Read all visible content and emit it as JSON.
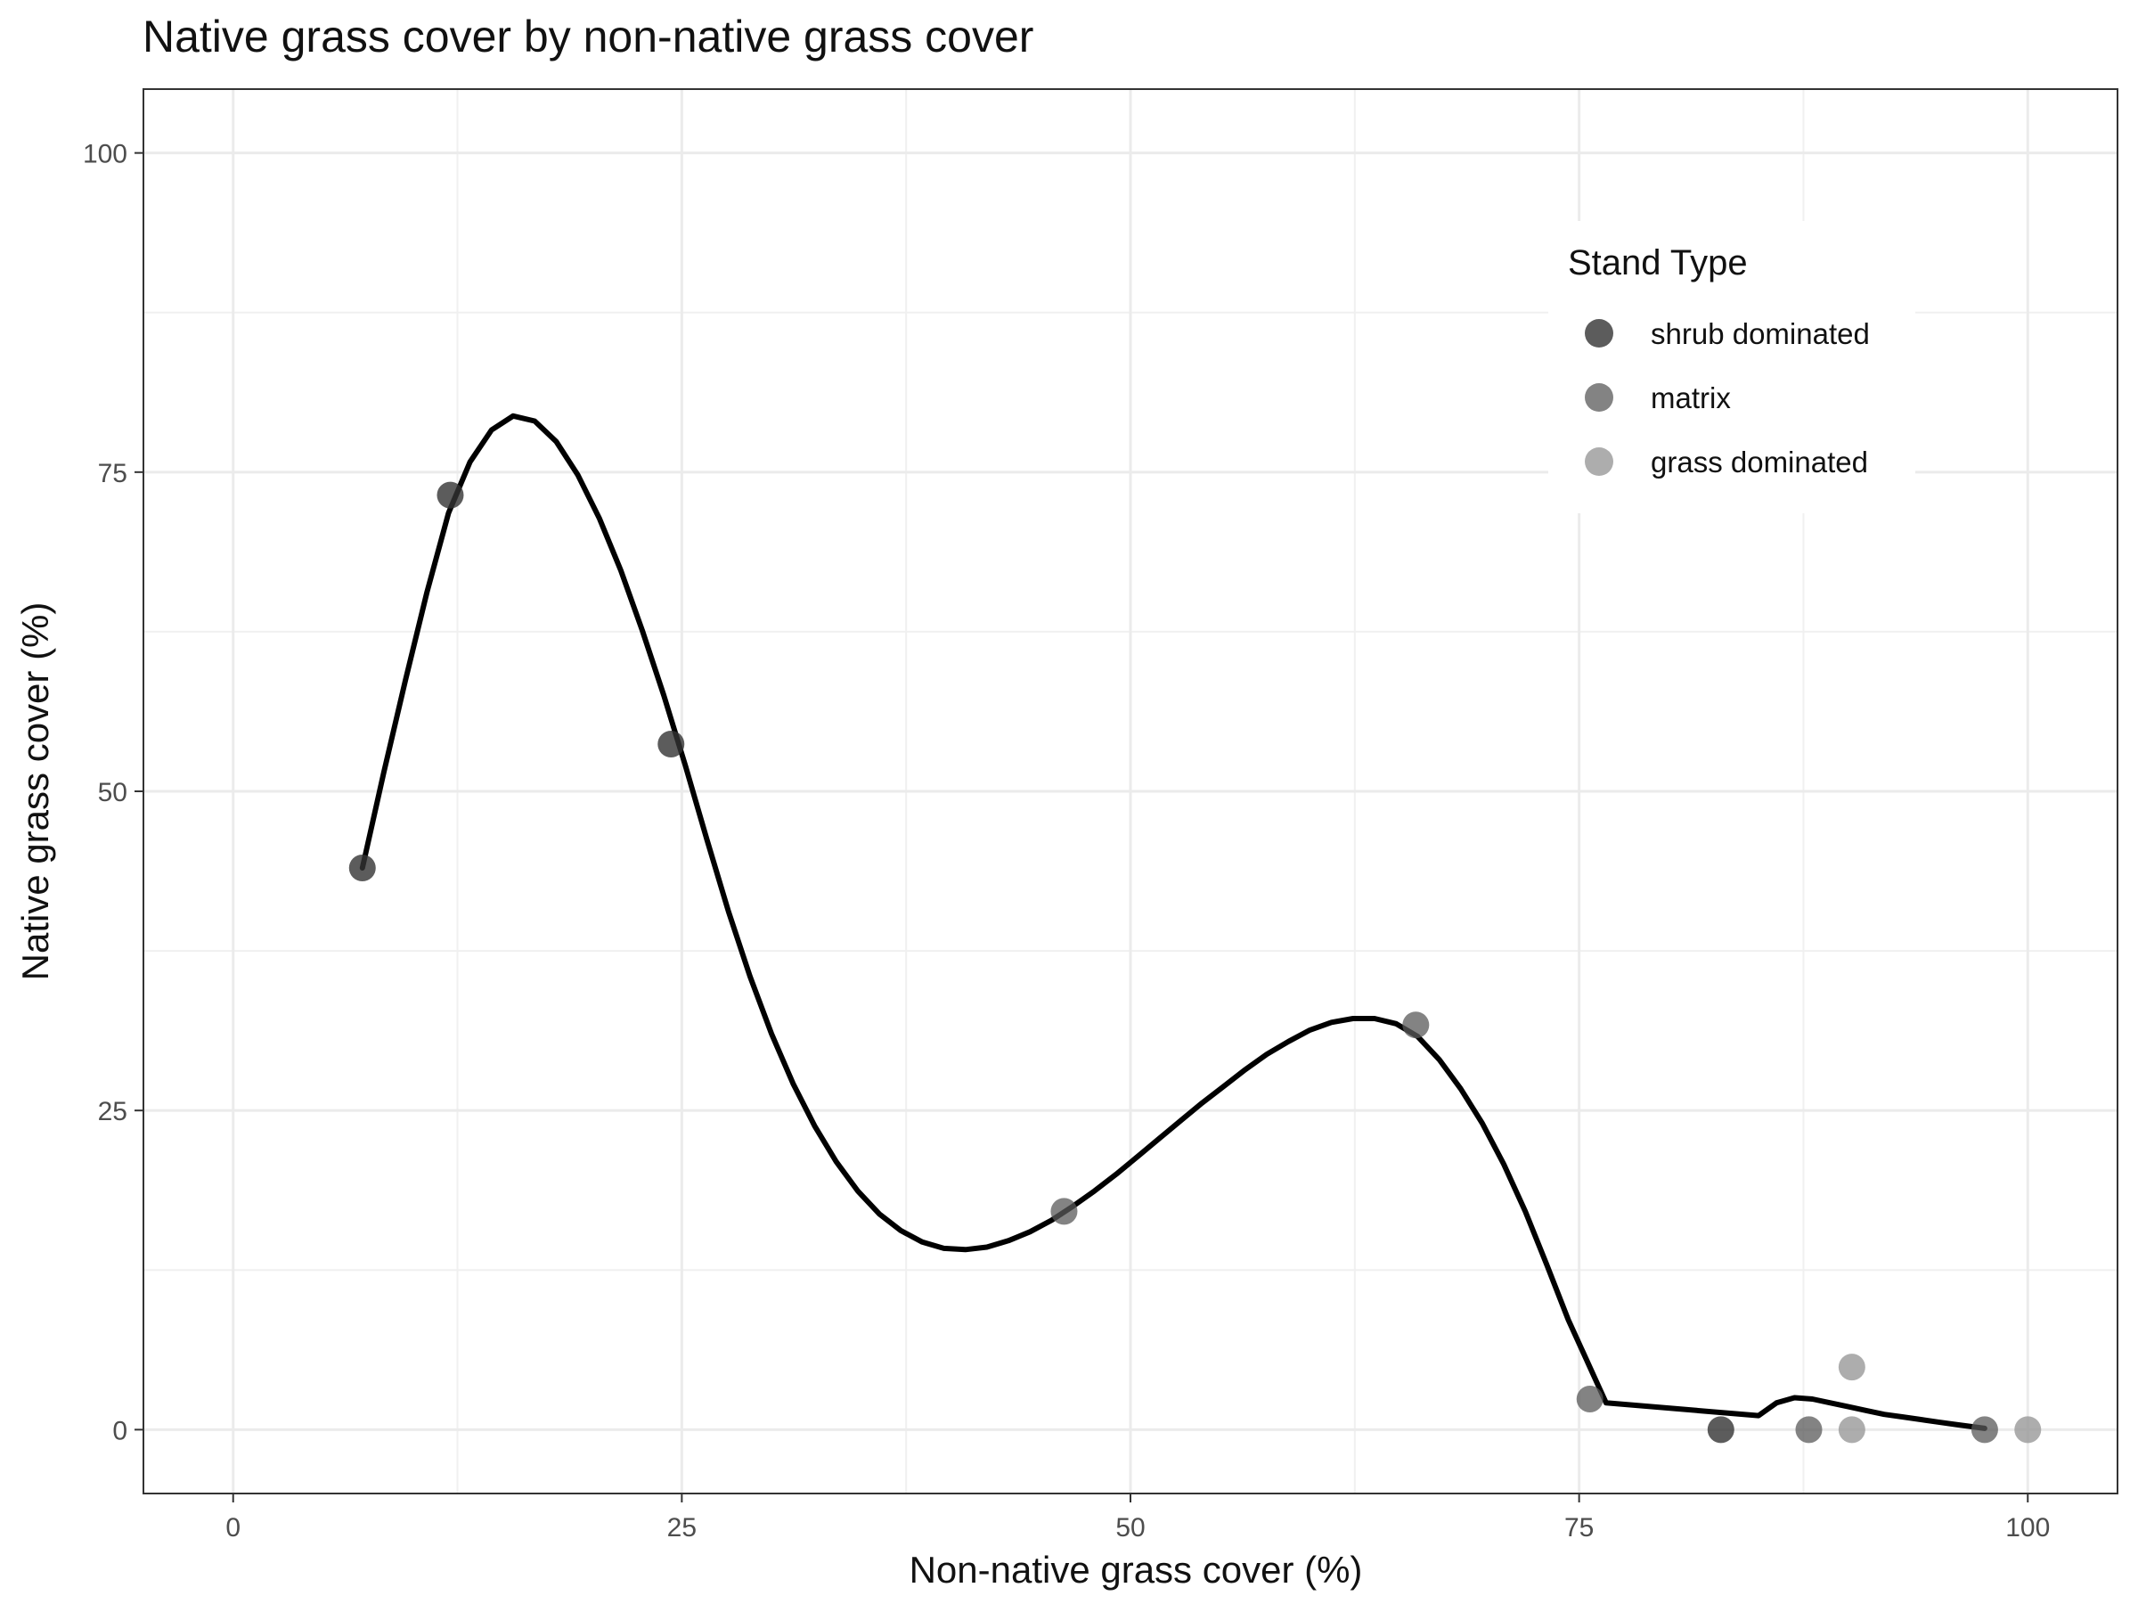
{
  "chart_data": {
    "type": "scatter",
    "title": "Native grass cover by non-native grass cover",
    "xlabel": "Non-native grass cover (%)",
    "ylabel": "Native grass cover (%)",
    "xlim": [
      -5,
      105
    ],
    "ylim": [
      -5,
      105
    ],
    "x_ticks": [
      "0",
      "25",
      "50",
      "75",
      "100"
    ],
    "y_ticks": [
      "0",
      "25",
      "50",
      "75",
      "100"
    ],
    "grid": true,
    "legend": {
      "title": "Stand Type",
      "position": "top-right",
      "entries": [
        {
          "label": "shrub dominated",
          "color": "#333333",
          "opacity": 0.8
        },
        {
          "label": "matrix",
          "color": "#5a5a5a",
          "opacity": 0.75
        },
        {
          "label": "grass dominated",
          "color": "#999999",
          "opacity": 0.8
        }
      ]
    },
    "series": [
      {
        "name": "shrub dominated",
        "points": [
          {
            "x": 7.2,
            "y": 44
          },
          {
            "x": 12.1,
            "y": 73.2
          },
          {
            "x": 24.4,
            "y": 53.7
          },
          {
            "x": 82.9,
            "y": 0
          }
        ]
      },
      {
        "name": "matrix",
        "points": [
          {
            "x": 46.3,
            "y": 17.1
          },
          {
            "x": 65.9,
            "y": 31.7
          },
          {
            "x": 75.6,
            "y": 2.4
          },
          {
            "x": 87.8,
            "y": 0
          },
          {
            "x": 97.6,
            "y": 0
          }
        ]
      },
      {
        "name": "grass dominated",
        "points": [
          {
            "x": 90.2,
            "y": 4.9
          },
          {
            "x": 90.2,
            "y": 0
          },
          {
            "x": 100,
            "y": 0
          }
        ]
      }
    ],
    "smooth_line": {
      "color": "#000000",
      "points": [
        [
          7.2,
          44
        ],
        [
          8.4,
          51.5
        ],
        [
          9.6,
          58.7
        ],
        [
          10.8,
          65.6
        ],
        [
          12,
          71.8
        ],
        [
          13.2,
          75.8
        ],
        [
          14.4,
          78.3
        ],
        [
          15.6,
          79.4
        ],
        [
          16.8,
          79
        ],
        [
          18,
          77.4
        ],
        [
          19.2,
          74.8
        ],
        [
          20.4,
          71.4
        ],
        [
          21.6,
          67.3
        ],
        [
          22.8,
          62.6
        ],
        [
          24,
          57.5
        ],
        [
          25.2,
          52
        ],
        [
          26.4,
          46.2
        ],
        [
          27.6,
          40.6
        ],
        [
          28.8,
          35.5
        ],
        [
          30,
          31
        ],
        [
          31.2,
          27.1
        ],
        [
          32.4,
          23.8
        ],
        [
          33.6,
          21
        ],
        [
          34.8,
          18.7
        ],
        [
          36,
          16.9
        ],
        [
          37.2,
          15.6
        ],
        [
          38.4,
          14.7
        ],
        [
          39.6,
          14.2
        ],
        [
          40.8,
          14.1
        ],
        [
          42,
          14.3
        ],
        [
          43.2,
          14.8
        ],
        [
          44.4,
          15.5
        ],
        [
          45.6,
          16.4
        ],
        [
          46.8,
          17.5
        ],
        [
          48,
          18.7
        ],
        [
          49.2,
          20
        ],
        [
          50.4,
          21.4
        ],
        [
          51.6,
          22.8
        ],
        [
          52.8,
          24.2
        ],
        [
          54,
          25.6
        ],
        [
          55.2,
          26.9
        ],
        [
          56.4,
          28.2
        ],
        [
          57.6,
          29.4
        ],
        [
          58.8,
          30.4
        ],
        [
          60,
          31.3
        ],
        [
          61.2,
          31.9
        ],
        [
          62.4,
          32.2
        ],
        [
          63.6,
          32.2
        ],
        [
          64.8,
          31.8
        ],
        [
          66,
          30.8
        ],
        [
          67.2,
          29
        ],
        [
          68.4,
          26.7
        ],
        [
          69.6,
          24
        ],
        [
          70.8,
          20.8
        ],
        [
          72,
          17.1
        ],
        [
          73.2,
          12.9
        ],
        [
          74.4,
          8.6
        ],
        [
          75.6,
          4.9
        ],
        [
          76.5,
          2.1
        ],
        [
          85,
          1.1
        ],
        [
          86,
          2.1
        ],
        [
          87,
          2.5
        ],
        [
          88,
          2.4
        ],
        [
          89,
          2.1
        ],
        [
          90,
          1.8
        ],
        [
          91,
          1.5
        ],
        [
          92,
          1.2
        ],
        [
          93,
          1
        ],
        [
          94,
          0.8
        ],
        [
          95,
          0.6
        ],
        [
          96,
          0.4
        ],
        [
          97.6,
          0.1
        ]
      ]
    }
  }
}
